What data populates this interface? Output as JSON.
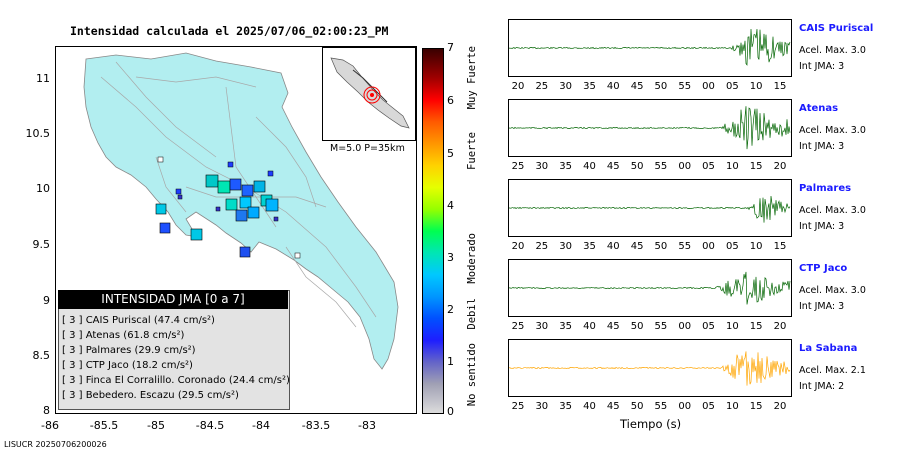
{
  "map": {
    "title": "Intensidad calculada el 2025/07/06_02:00:23_PM",
    "lat_ticks": [
      "11",
      "10.5",
      "10",
      "9.5",
      "9",
      "8.5",
      "8"
    ],
    "lon_ticks": [
      "-86",
      "-85.5",
      "-85",
      "-84.5",
      "-84",
      "-83.5",
      "-83"
    ],
    "inset_label": "M=5.0 P=35km",
    "colors": {
      "land": "#b2eef0",
      "sea": "#ffffff",
      "epicenter": "#ff0000"
    }
  },
  "legend": {
    "title": "INTENSIDAD JMA [0 a 7]",
    "items": [
      {
        "text": "[ 3 ]  CAIS Puriscal (47.4 cm/s²)"
      },
      {
        "text": "[ 3 ]  Atenas (61.8 cm/s²)"
      },
      {
        "text": "[ 3 ]  Palmares (29.9 cm/s²)"
      },
      {
        "text": "[ 3 ]  CTP Jaco (18.2 cm/s²)"
      },
      {
        "text": "[ 3 ]  Finca El Corralillo. Coronado (24.4 cm/s²)"
      },
      {
        "text": "[ 3 ]  Bebedero. Escazu (29.5 cm/s²)"
      }
    ]
  },
  "colorbar": {
    "ticks": [
      "7",
      "6",
      "5",
      "4",
      "3",
      "2",
      "1",
      "0"
    ],
    "labels": [
      "Muy Fuerte",
      "Fuerte",
      "Moderado",
      "Debil",
      "No sentido"
    ]
  },
  "footer": {
    "id": "LISUCR 20250706200026"
  },
  "stations": [
    {
      "name": "CAIS Puriscal",
      "acel": "Acel. Max. 3.0",
      "int": "Int JMA: 3",
      "ticks": [
        "20",
        "25",
        "30",
        "35",
        "40",
        "45",
        "50",
        "55",
        "00",
        "05",
        "10",
        "15"
      ],
      "color": "#006400",
      "amp": 0.8,
      "onset": 0.78
    },
    {
      "name": "Atenas",
      "acel": "Acel. Max. 3.0",
      "int": "Int JMA: 3",
      "ticks": [
        "25",
        "30",
        "35",
        "40",
        "45",
        "50",
        "55",
        "00",
        "05",
        "10",
        "15",
        "20"
      ],
      "color": "#006400",
      "amp": 0.85,
      "onset": 0.74
    },
    {
      "name": "Palmares",
      "acel": "Acel. Max. 3.0",
      "int": "Int JMA: 3",
      "ticks": [
        "20",
        "25",
        "30",
        "35",
        "40",
        "45",
        "50",
        "55",
        "00",
        "05",
        "10",
        "15"
      ],
      "color": "#006400",
      "amp": 0.6,
      "onset": 0.84
    },
    {
      "name": "CTP Jaco",
      "acel": "Acel. Max. 3.0",
      "int": "Int JMA: 3",
      "ticks": [
        "25",
        "30",
        "35",
        "40",
        "45",
        "50",
        "55",
        "00",
        "05",
        "10",
        "15",
        "20"
      ],
      "color": "#006400",
      "amp": 0.7,
      "onset": 0.72
    },
    {
      "name": "La Sabana",
      "acel": "Acel. Max. 2.1",
      "int": "Int JMA: 2",
      "ticks": [
        "25",
        "30",
        "35",
        "40",
        "45",
        "50",
        "55",
        "00",
        "05",
        "10",
        "15",
        "20"
      ],
      "color": "#ffa500",
      "amp": 0.75,
      "onset": 0.74
    }
  ],
  "xaxis_label": "Tiempo (s)"
}
